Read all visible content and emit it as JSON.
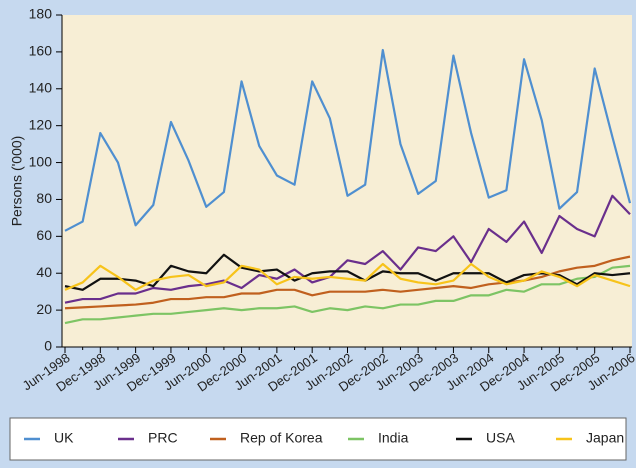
{
  "chart_data": {
    "type": "line",
    "y_label": "Persons ('000)",
    "categories": [
      "Jun-1998",
      null,
      "Dec-1998",
      null,
      "Jun-1999",
      null,
      "Dec-1999",
      null,
      "Jun-2000",
      null,
      "Dec-2000",
      null,
      "Jun-2001",
      null,
      "Dec-2001",
      null,
      "Jun-2002",
      null,
      "Dec-2002",
      null,
      "Jun-2003",
      null,
      "Dec-2003",
      null,
      "Jun-2004",
      null,
      "Dec-2004",
      null,
      "Jun-2005",
      null,
      "Dec-2005",
      null,
      "Jun-2006"
    ],
    "ylim": [
      0,
      180
    ],
    "yticks": [
      0,
      20,
      40,
      60,
      80,
      100,
      120,
      140,
      160,
      180
    ],
    "series": [
      {
        "name": "UK",
        "color": "#4f8fd0",
        "values": [
          63,
          68,
          116,
          100,
          66,
          77,
          122,
          101,
          76,
          84,
          144,
          109,
          93,
          88,
          144,
          124,
          82,
          88,
          161,
          110,
          83,
          90,
          158,
          116,
          81,
          85,
          156,
          123,
          75,
          84,
          151,
          114,
          78
        ]
      },
      {
        "name": "PRC",
        "color": "#6a2f8c",
        "values": [
          24,
          26,
          26,
          29,
          29,
          32,
          31,
          33,
          34,
          36,
          32,
          39,
          37,
          42,
          35,
          38,
          47,
          45,
          52,
          42,
          54,
          52,
          60,
          46,
          64,
          57,
          68,
          51,
          71,
          64,
          60,
          82,
          72
        ]
      },
      {
        "name": "Rep of Korea",
        "color": "#c0601e",
        "values": [
          21,
          21.5,
          22,
          22.5,
          23,
          24,
          26,
          26,
          27,
          27,
          29,
          29,
          31,
          31,
          28,
          30,
          30,
          30,
          31,
          30,
          31,
          32,
          33,
          32,
          34,
          35,
          36,
          38,
          41,
          43,
          44,
          47,
          49
        ]
      },
      {
        "name": "India",
        "color": "#7dc464",
        "values": [
          13,
          15,
          15,
          16,
          17,
          18,
          18,
          19,
          20,
          21,
          20,
          21,
          21,
          22,
          19,
          21,
          20,
          22,
          21,
          23,
          23,
          25,
          25,
          28,
          28,
          31,
          30,
          34,
          34,
          37,
          38,
          43,
          44
        ]
      },
      {
        "name": "USA",
        "color": "#111111",
        "values": [
          33,
          31,
          37,
          37,
          36,
          33,
          44,
          41,
          40,
          50,
          43,
          41,
          42,
          36,
          40,
          41,
          41,
          36,
          41,
          40,
          40,
          36,
          40,
          40,
          40,
          35,
          39,
          40,
          39,
          34,
          40,
          39,
          40
        ]
      },
      {
        "name": "Japan",
        "color": "#f7c31a",
        "values": [
          31,
          35,
          44,
          38,
          31,
          36,
          38,
          39,
          33,
          35,
          44,
          42,
          34,
          38,
          37,
          38,
          37,
          36,
          45,
          37,
          35,
          34,
          36,
          45,
          38,
          34,
          36,
          41,
          38,
          33,
          39,
          36,
          33
        ]
      }
    ]
  }
}
